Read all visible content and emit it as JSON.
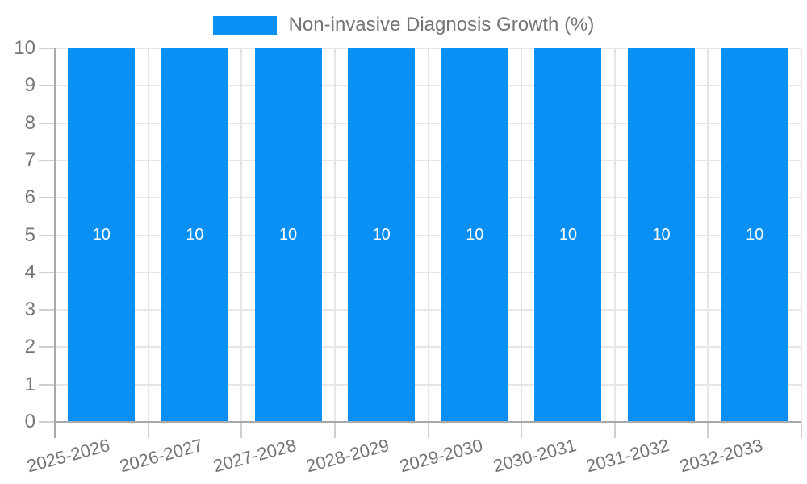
{
  "chart_data": {
    "type": "bar",
    "title": "",
    "categories": [
      "2025-2026",
      "2026-2027",
      "2027-2028",
      "2028-2029",
      "2029-2030",
      "2030-2031",
      "2031-2032",
      "2032-2033"
    ],
    "series": [
      {
        "name": "Non-invasive Diagnosis Growth (%)",
        "values": [
          10,
          10,
          10,
          10,
          10,
          10,
          10,
          10
        ]
      }
    ],
    "bar_labels": [
      "10",
      "10",
      "10",
      "10",
      "10",
      "10",
      "10",
      "10"
    ],
    "xlabel": "",
    "ylabel": "",
    "ylim": [
      0,
      10
    ],
    "yticks": [
      0,
      1,
      2,
      3,
      4,
      5,
      6,
      7,
      8,
      9,
      10
    ],
    "grid": true,
    "legend_position": "top",
    "x_label_rotation_deg": -15,
    "colors": {
      "bar": "#0a90f5",
      "grid": "#e6e6e6",
      "axis": "#a9a9a9",
      "tick": "#cfcfcf",
      "label_text": "#757575",
      "bar_label_text": "#ffffff",
      "background": "#ffffff"
    }
  }
}
